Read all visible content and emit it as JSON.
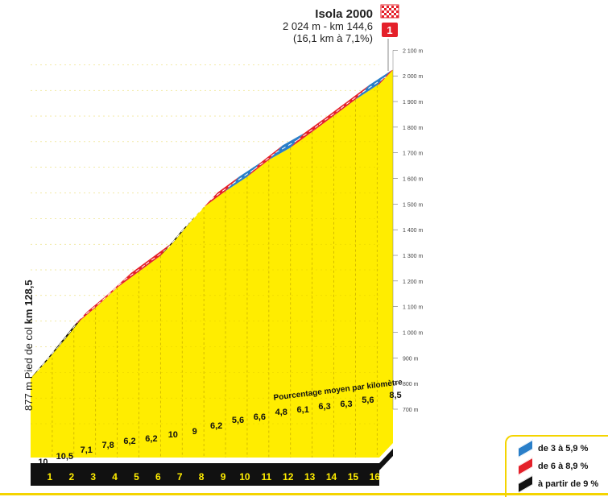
{
  "summit": {
    "name": "Isola 2000",
    "line1": "2 024 m - km 144,6",
    "line2": "(16,1 km à 7,1%)",
    "category": "1"
  },
  "start": {
    "prefix": "877 m Pied de col ",
    "km": "km 128,5"
  },
  "avg_label": "Pourcentage moyen par kilomètre",
  "legend": [
    {
      "label": "de 3 à 5,9 %",
      "color": "#2a7fc9"
    },
    {
      "label": "de 6 à 8,9 %",
      "color": "#e4202a"
    },
    {
      "label": "à partir de 9 %",
      "color": "#111111"
    }
  ],
  "colors": {
    "fill": "#ffed00",
    "side": "#f2c200",
    "base": "#111111"
  },
  "chart_data": {
    "type": "area",
    "title": "Isola 2000",
    "x": [
      0,
      1,
      2,
      3,
      4,
      5,
      6,
      7,
      8,
      9,
      10,
      11,
      12,
      13,
      14,
      15,
      16,
      16.1
    ],
    "altitude": [
      877,
      977,
      1082,
      1153,
      1231,
      1293,
      1355,
      1455,
      1545,
      1607,
      1663,
      1729,
      1777,
      1838,
      1901,
      1964,
      2020,
      2024
    ],
    "gradients_per_km": [
      "10",
      "10,5",
      "7,1",
      "7,8",
      "6,2",
      "6,2",
      "10",
      "9",
      "6,2",
      "5,6",
      "6,6",
      "4,8",
      "6,1",
      "6,3",
      "6,3",
      "5,6",
      "8,5"
    ],
    "km_labels": [
      "1",
      "2",
      "3",
      "4",
      "5",
      "6",
      "7",
      "8",
      "9",
      "10",
      "11",
      "12",
      "13",
      "14",
      "15",
      "16"
    ],
    "y_ticks": [
      700,
      800,
      900,
      1000,
      1100,
      1200,
      1300,
      1400,
      1500,
      1600,
      1700,
      1800,
      1900,
      2000,
      2100
    ],
    "y_tick_labels": [
      "700 m",
      "800 m",
      "900 m",
      "1 000 m",
      "1 100 m",
      "1 200 m",
      "1 300 m",
      "1 400 m",
      "1 500 m",
      "1 600 m",
      "1 700 m",
      "1 800 m",
      "1 900 m",
      "2 000 m",
      "2 100 m"
    ],
    "ylim": [
      700,
      2100
    ],
    "xlim": [
      0,
      16.1
    ]
  }
}
